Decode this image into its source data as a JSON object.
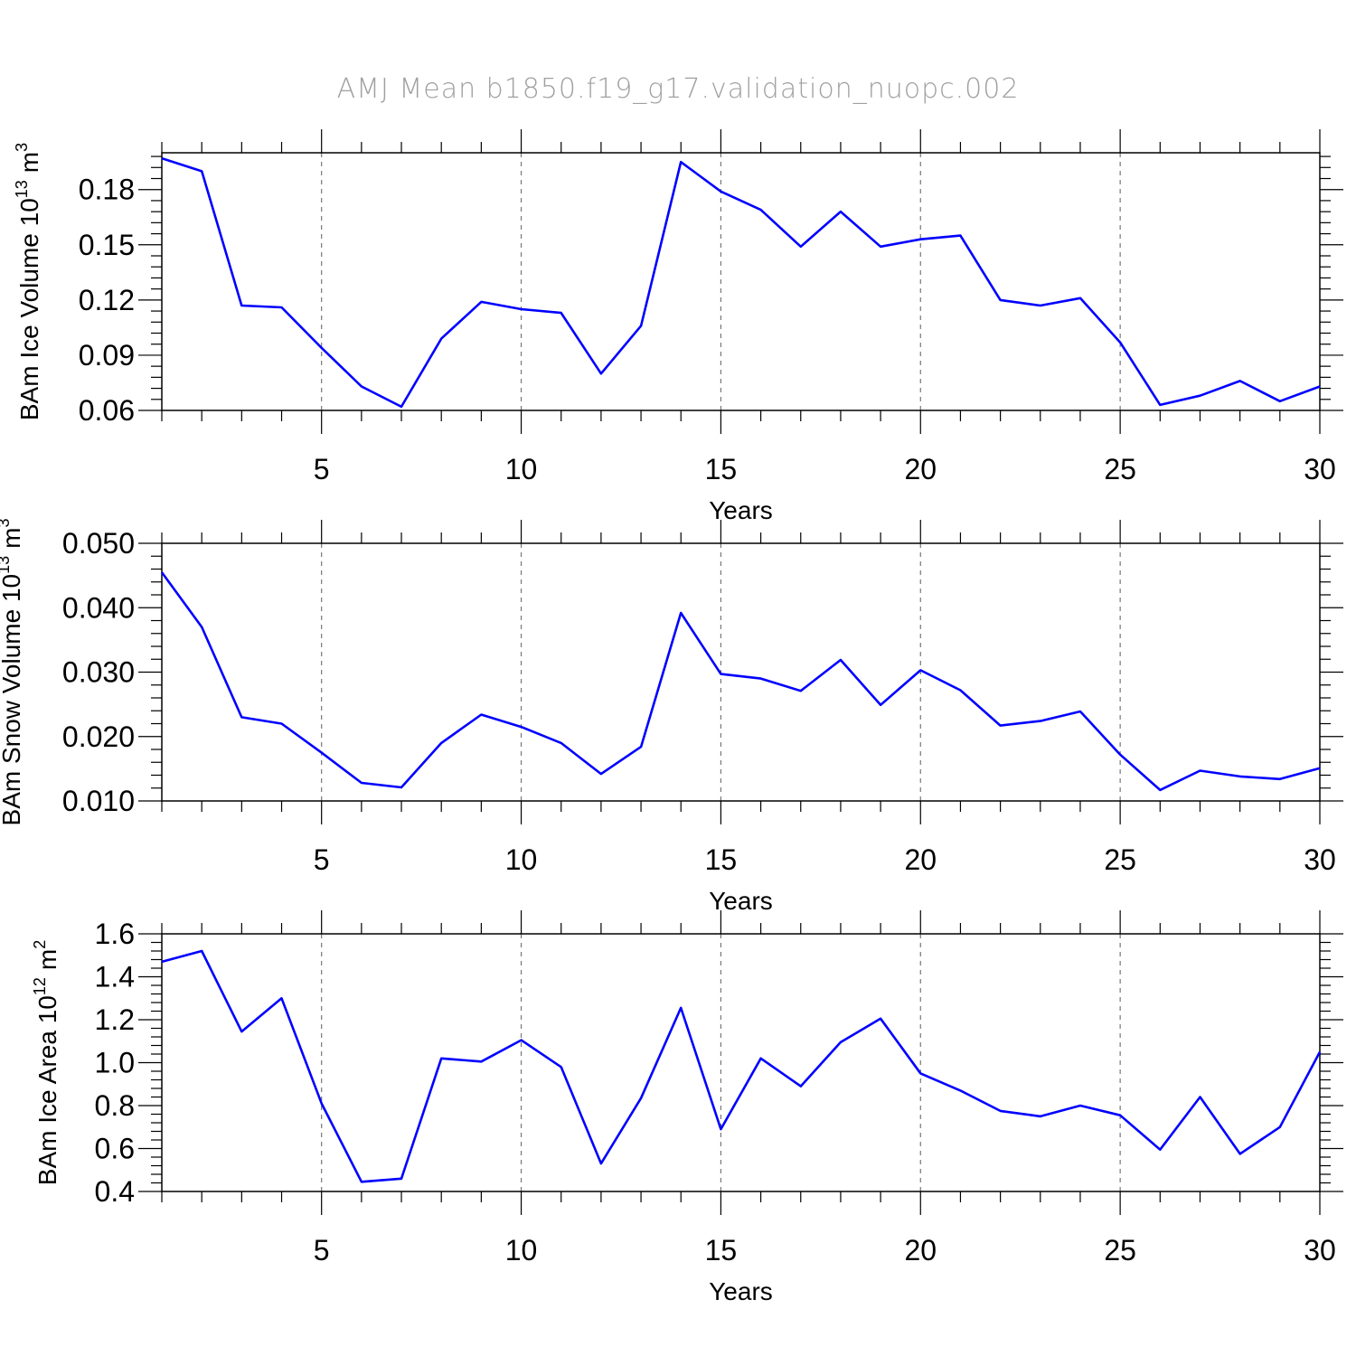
{
  "title": "AMJ Mean b1850.f19_g17.validation_nuopc.002",
  "chart_data": [
    {
      "type": "line",
      "xlabel": "Years",
      "ylabel_main": "BAm Ice Volume 10",
      "ylabel_sup": "13",
      "ylabel_unit": "m",
      "ylabel_unit_sup": "3",
      "xlim": [
        1,
        30
      ],
      "ylim": [
        0.06,
        0.2
      ],
      "xticks": [
        5,
        10,
        15,
        20,
        25,
        30
      ],
      "xtick_labels": [
        "5",
        "10",
        "15",
        "20",
        "25",
        "30"
      ],
      "yticks": [
        0.06,
        0.09,
        0.12,
        0.15,
        0.18
      ],
      "ytick_labels": [
        "0.06",
        "0.09",
        "0.12",
        "0.15",
        "0.18"
      ],
      "grid": "vertical dashed at major x ticks",
      "color": "#0000ff",
      "x": [
        1,
        2,
        3,
        4,
        5,
        6,
        7,
        8,
        9,
        10,
        11,
        12,
        13,
        14,
        15,
        16,
        17,
        18,
        19,
        20,
        21,
        22,
        23,
        24,
        25,
        26,
        27,
        28,
        29,
        30
      ],
      "values": [
        0.197,
        0.19,
        0.117,
        0.116,
        0.094,
        0.073,
        0.062,
        0.099,
        0.119,
        0.115,
        0.113,
        0.08,
        0.106,
        0.195,
        0.179,
        0.169,
        0.149,
        0.168,
        0.149,
        0.153,
        0.155,
        0.12,
        0.117,
        0.121,
        0.097,
        0.063,
        0.068,
        0.076,
        0.065,
        0.073
      ]
    },
    {
      "type": "line",
      "xlabel": "Years",
      "ylabel_main": "BAm Snow Volume 10",
      "ylabel_sup": "13",
      "ylabel_unit": "m",
      "ylabel_unit_sup": "3",
      "xlim": [
        1,
        30
      ],
      "ylim": [
        0.01,
        0.05
      ],
      "xticks": [
        5,
        10,
        15,
        20,
        25,
        30
      ],
      "xtick_labels": [
        "5",
        "10",
        "15",
        "20",
        "25",
        "30"
      ],
      "yticks": [
        0.01,
        0.02,
        0.03,
        0.04,
        0.05
      ],
      "ytick_labels": [
        "0.010",
        "0.020",
        "0.030",
        "0.040",
        "0.050"
      ],
      "grid": "vertical dashed at major x ticks",
      "color": "#0000ff",
      "x": [
        1,
        2,
        3,
        4,
        5,
        6,
        7,
        8,
        9,
        10,
        11,
        12,
        13,
        14,
        15,
        16,
        17,
        18,
        19,
        20,
        21,
        22,
        23,
        24,
        25,
        26,
        27,
        28,
        29,
        30
      ],
      "values": [
        0.0455,
        0.037,
        0.023,
        0.022,
        0.0175,
        0.0128,
        0.0121,
        0.019,
        0.0234,
        0.0215,
        0.019,
        0.0142,
        0.0184,
        0.0392,
        0.0297,
        0.029,
        0.0271,
        0.0319,
        0.0249,
        0.0303,
        0.0272,
        0.0217,
        0.0224,
        0.0239,
        0.0172,
        0.0117,
        0.0147,
        0.0138,
        0.0134,
        0.0151
      ]
    },
    {
      "type": "line",
      "xlabel": "Years",
      "ylabel_main": "BAm Ice Area 10",
      "ylabel_sup": "12",
      "ylabel_unit": "m",
      "ylabel_unit_sup": "2",
      "xlim": [
        1,
        30
      ],
      "ylim": [
        0.4,
        1.6
      ],
      "xticks": [
        5,
        10,
        15,
        20,
        25,
        30
      ],
      "xtick_labels": [
        "5",
        "10",
        "15",
        "20",
        "25",
        "30"
      ],
      "yticks": [
        0.4,
        0.6,
        0.8,
        1.0,
        1.2,
        1.4,
        1.6
      ],
      "ytick_labels": [
        "0.4",
        "0.6",
        "0.8",
        "1.0",
        "1.2",
        "1.4",
        "1.6"
      ],
      "grid": "vertical dashed at major x ticks",
      "color": "#0000ff",
      "x": [
        1,
        2,
        3,
        4,
        5,
        6,
        7,
        8,
        9,
        10,
        11,
        12,
        13,
        14,
        15,
        16,
        17,
        18,
        19,
        20,
        21,
        22,
        23,
        24,
        25,
        26,
        27,
        28,
        29,
        30
      ],
      "values": [
        1.47,
        1.52,
        1.145,
        1.3,
        0.81,
        0.445,
        0.46,
        1.02,
        1.005,
        1.105,
        0.98,
        0.53,
        0.835,
        1.255,
        0.69,
        1.02,
        0.89,
        1.095,
        1.205,
        0.95,
        0.87,
        0.775,
        0.75,
        0.8,
        0.755,
        0.595,
        0.84,
        0.575,
        0.7,
        1.05
      ]
    }
  ]
}
